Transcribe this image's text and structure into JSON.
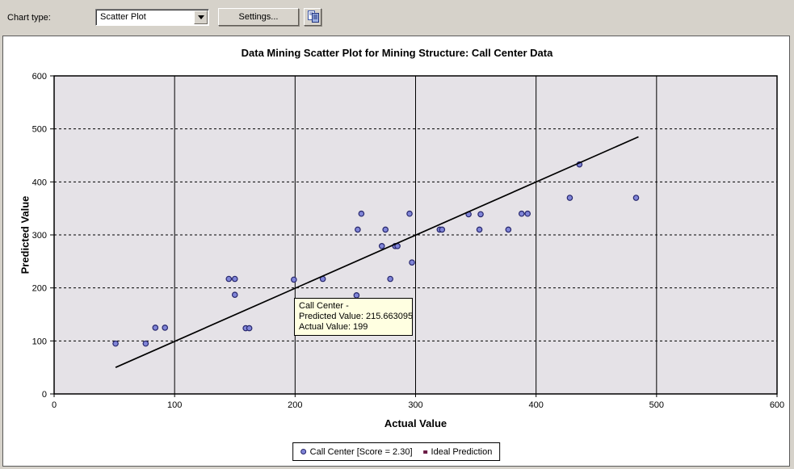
{
  "toolbar": {
    "chart_type_label": "Chart type:",
    "chart_type_value": "Scatter Plot",
    "settings_button": "Settings...",
    "copy_icon": "copy-icon"
  },
  "chart_data": {
    "type": "scatter",
    "title": "Data Mining Scatter Plot for Mining Structure: Call Center Data",
    "xlabel": "Actual Value",
    "ylabel": "Predicted Value",
    "xlim": [
      0,
      600
    ],
    "ylim": [
      0,
      600
    ],
    "x_ticks": [
      0,
      100,
      200,
      300,
      400,
      500,
      600
    ],
    "y_ticks": [
      0,
      100,
      200,
      300,
      400,
      500,
      600
    ],
    "grid": "on",
    "legend_position": "bottom",
    "series": [
      {
        "name": "Call Center [Score = 2.30]",
        "type": "scatter",
        "points": [
          [
            51,
            95
          ],
          [
            76,
            95
          ],
          [
            84,
            125
          ],
          [
            92,
            125
          ],
          [
            145,
            217
          ],
          [
            150,
            217
          ],
          [
            150,
            187
          ],
          [
            159,
            124
          ],
          [
            162,
            124
          ],
          [
            199,
            215.663095
          ],
          [
            223,
            217
          ],
          [
            251,
            186
          ],
          [
            252,
            310
          ],
          [
            255,
            340
          ],
          [
            272,
            279
          ],
          [
            283,
            279
          ],
          [
            285,
            279
          ],
          [
            275,
            310
          ],
          [
            279,
            217
          ],
          [
            295,
            340
          ],
          [
            297,
            248
          ],
          [
            320,
            310
          ],
          [
            322,
            310
          ],
          [
            344,
            339
          ],
          [
            354,
            339
          ],
          [
            353,
            310
          ],
          [
            377,
            310
          ],
          [
            388,
            340
          ],
          [
            393,
            340
          ],
          [
            428,
            370
          ],
          [
            436,
            433
          ],
          [
            483,
            370
          ]
        ]
      },
      {
        "name": "Ideal Prediction",
        "type": "line",
        "points": [
          [
            51,
            50
          ],
          [
            485,
            485
          ]
        ]
      }
    ],
    "tooltip": {
      "lines": [
        "Call Center -",
        "Predicted Value: 215.663095",
        "Actual Value: 199"
      ],
      "anchor_point": [
        199,
        215.663095
      ]
    }
  },
  "colors": {
    "plot_bg": "#e5e2e7",
    "panel_bg": "#ffffff",
    "toolbar_bg": "#d6d2ca",
    "marker_fill": "#8085d8",
    "marker_stroke": "#26266c",
    "ideal_line": "#000000",
    "grid_line": "#000000",
    "tooltip_bg": "#ffffe1",
    "legend_square": "#6a1b45"
  }
}
